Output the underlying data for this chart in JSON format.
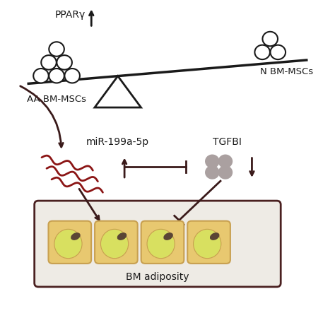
{
  "bg_color": "#ffffff",
  "line_color": "#1a1a1a",
  "dark_brown": "#3a1a1a",
  "mir_color": "#8b1515",
  "cell_outer_fill": "#e8c870",
  "cell_outer_edge": "#c8a050",
  "cell_inner_fill": "#d8e060",
  "cell_bg": "#e8e0d0",
  "nucleus_fill": "#5a4535",
  "tgfbi_circle_color": "#aaa0a0",
  "white_circle_color": "#ffffff",
  "white_circle_edge": "#1a1a1a",
  "box_fill": "#eeebe5",
  "box_edge": "#4a2020",
  "label_ppar": "PPARγ",
  "label_aa": "AA BM-MSCs",
  "label_n": "N BM-MSCs",
  "label_mir": "miR-199a-5p",
  "label_tgfbi": "TGFBI",
  "label_bm": "BM adiposity",
  "figsize": [
    4.74,
    4.5
  ],
  "dpi": 100
}
